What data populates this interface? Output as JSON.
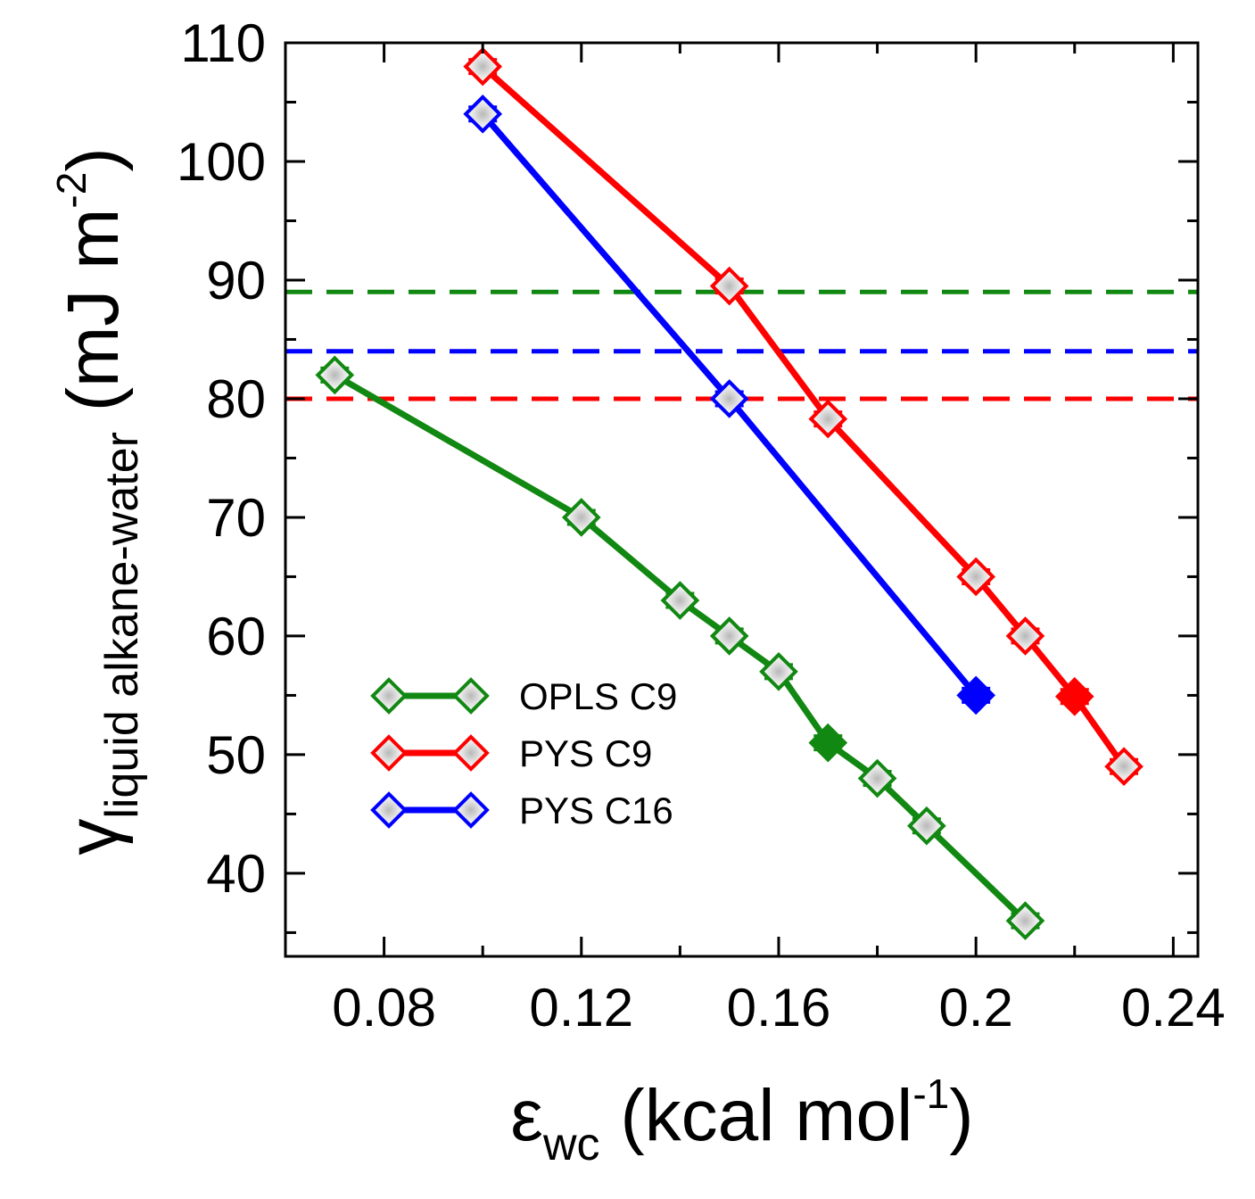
{
  "chart_data": {
    "type": "line",
    "xlabel": {
      "symbol": "ε",
      "subscript": "wc",
      "unit_open": " (kcal mol",
      "unit_exp": "-1",
      "unit_close": ")"
    },
    "ylabel": {
      "symbol": "γ",
      "subscript": "liquid alkane-water",
      "unit_open": " (mJ m",
      "unit_exp": "-2",
      "unit_close": ")"
    },
    "xlim": [
      0.06,
      0.245
    ],
    "ylim": [
      33,
      110
    ],
    "xticks": [
      0.08,
      0.12,
      0.16,
      0.2,
      0.24
    ],
    "xtick_labels": [
      "0.08",
      "0.12",
      "0.16",
      "0.2",
      "0.24"
    ],
    "xminor": [
      0.1,
      0.14,
      0.18,
      0.22
    ],
    "yticks": [
      40,
      50,
      60,
      70,
      80,
      90,
      100,
      110
    ],
    "ytick_labels": [
      "40",
      "50",
      "60",
      "70",
      "80",
      "90",
      "100",
      "110"
    ],
    "yminor": [
      35,
      45,
      55,
      65,
      75,
      85,
      95,
      105
    ],
    "legend_position": "lower-left",
    "series": [
      {
        "name": "OPLS C9",
        "color": "#118811",
        "x": [
          0.07,
          0.12,
          0.14,
          0.15,
          0.16,
          0.17,
          0.18,
          0.19,
          0.21
        ],
        "y": [
          82,
          70,
          63,
          60,
          57,
          51,
          48,
          44,
          36
        ],
        "filled": [
          false,
          false,
          false,
          false,
          false,
          true,
          false,
          false,
          false
        ],
        "reference_line": 89
      },
      {
        "name": "PYS C9",
        "color": "#ff0000",
        "x": [
          0.1,
          0.15,
          0.17,
          0.2,
          0.21,
          0.22,
          0.23
        ],
        "y": [
          108,
          89.5,
          78.3,
          65,
          60,
          54.9,
          49
        ],
        "filled": [
          false,
          false,
          false,
          false,
          false,
          true,
          false
        ],
        "reference_line": 80
      },
      {
        "name": "PYS C16",
        "color": "#0000ff",
        "x": [
          0.1,
          0.15,
          0.2
        ],
        "y": [
          104,
          80,
          55
        ],
        "filled": [
          false,
          false,
          true
        ],
        "reference_line": 84
      }
    ]
  }
}
